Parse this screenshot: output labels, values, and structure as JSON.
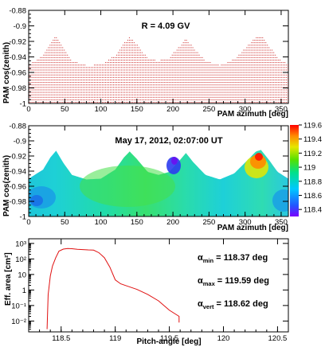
{
  "chart_data": [
    {
      "type": "scatter",
      "title": "R = 4.09 GV",
      "xlabel": "PAM azimuth [deg]",
      "ylabel": "PAM cos(zenith)",
      "xlim": [
        0,
        360
      ],
      "ylim": [
        -1,
        -0.88
      ],
      "x_ticks": [
        "0",
        "50",
        "100",
        "150",
        "200",
        "250",
        "300",
        "350"
      ],
      "y_ticks": [
        "-0.88",
        "-0.9",
        "-0.92",
        "-0.94",
        "-0.96",
        "-0.98",
        "-1"
      ],
      "grid": false,
      "marker_color": "#cc2a2a",
      "boundary": {
        "azimuth": [
          0,
          20,
          30,
          38,
          48,
          60,
          80,
          100,
          120,
          132,
          140,
          150,
          165,
          180,
          195,
          210,
          218,
          228,
          245,
          265,
          285,
          305,
          315,
          322,
          333,
          345,
          360
        ],
        "cos_zenith": [
          -0.95,
          -0.938,
          -0.922,
          -0.913,
          -0.929,
          -0.945,
          -0.951,
          -0.95,
          -0.938,
          -0.922,
          -0.914,
          -0.924,
          -0.941,
          -0.945,
          -0.941,
          -0.925,
          -0.916,
          -0.928,
          -0.945,
          -0.951,
          -0.943,
          -0.924,
          -0.914,
          -0.912,
          -0.925,
          -0.941,
          -0.95
        ]
      }
    },
    {
      "type": "heatmap",
      "title": "May 17, 2012, 02:07:00 UT",
      "xlabel": "PAM azimuth [deg]",
      "ylabel": "PAM cos(zenith)",
      "xlim": [
        0,
        360
      ],
      "ylim": [
        -1,
        -0.88
      ],
      "x_ticks": [
        "0",
        "50",
        "100",
        "150",
        "200",
        "250",
        "300",
        "350"
      ],
      "y_ticks": [
        "-0.88",
        "-0.9",
        "-0.92",
        "-0.94",
        "-0.96",
        "-0.98",
        "-1"
      ],
      "colorbar": {
        "min": 118.3,
        "max": 119.6,
        "ticks": [
          "119.6",
          "119.4",
          "119.2",
          "119",
          "118.8",
          "118.6",
          "118.4"
        ]
      },
      "value_range": [
        118.37,
        119.59
      ],
      "grid": false
    },
    {
      "type": "line",
      "xlabel": "Pitch-angle [deg]",
      "ylabel": "Eff. area [cm²]",
      "xlim": [
        118.2,
        120.6
      ],
      "ylim": [
        0.002,
        2000
      ],
      "y_scale": "log",
      "x_ticks": [
        "118.5",
        "119",
        "119.5",
        "120",
        "120.5"
      ],
      "y_ticks": [
        "10³",
        "10²",
        "10",
        "1",
        "10⁻¹",
        "10⁻²"
      ],
      "series": [
        {
          "color": "#e01010",
          "x": [
            118.37,
            118.38,
            118.4,
            118.42,
            118.45,
            118.48,
            118.52,
            118.56,
            118.6,
            118.65,
            118.7,
            118.75,
            118.8,
            118.85,
            118.9,
            118.95,
            119.0,
            119.05,
            119.1,
            119.2,
            119.3,
            119.4,
            119.5,
            119.59,
            119.59
          ],
          "y": [
            0.003,
            0.5,
            8,
            35,
            120,
            320,
            430,
            470,
            460,
            420,
            400,
            380,
            370,
            250,
            120,
            30,
            4.5,
            2.5,
            1.9,
            1.1,
            0.52,
            0.2,
            0.05,
            0.02,
            0.008
          ]
        }
      ],
      "annotations": [
        {
          "label": "α",
          "sub": "min",
          "text": "= 118.37 deg"
        },
        {
          "label": "α",
          "sub": "max",
          "text": "= 119.59 deg"
        },
        {
          "label": "α",
          "sub": "vert",
          "text": "= 118.62 deg"
        }
      ],
      "grid": false
    }
  ]
}
